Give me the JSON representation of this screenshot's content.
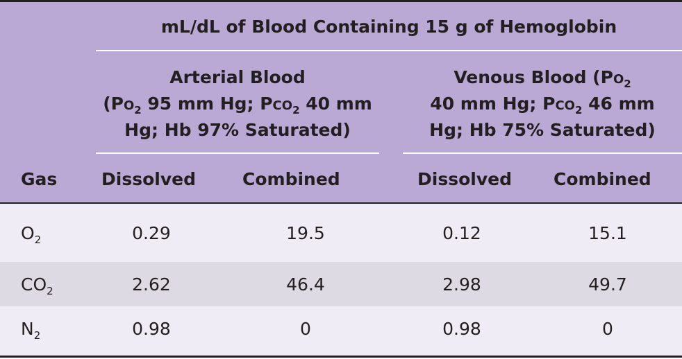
{
  "header": {
    "span_title": "mL/dL of Blood Containing 15 g of Hemoglobin",
    "gas_label": "Gas",
    "arterial": {
      "line1": "Arterial Blood",
      "line2_prefix": "(P",
      "line2_sub_o": "o",
      "line2_sub_2": "2",
      "line2_mid": " 95 mm Hg; P",
      "line2_sub_co": "co",
      "line2_sub_2b": "2",
      "line2_suffix": " 40 mm",
      "line3": "Hg; Hb 97% Saturated)"
    },
    "venous": {
      "line1_prefix": "Venous Blood (P",
      "line1_sub_o": "o",
      "line1_sub_2": "2",
      "line2_prefix": "40 mm Hg; P",
      "line2_sub_co": "co",
      "line2_sub_2": "2",
      "line2_suffix": " 46 mm",
      "line3": "Hg; Hb 75% Saturated)"
    },
    "columns": {
      "arterial_dissolved": "Dissolved",
      "arterial_combined": "Combined",
      "venous_dissolved": "Dissolved",
      "venous_combined": "Combined"
    }
  },
  "rows": [
    {
      "gas": "O",
      "gas_sub": "2",
      "arterial_dissolved": "0.29",
      "arterial_combined": "19.5",
      "venous_dissolved": "0.12",
      "venous_combined": "15.1"
    },
    {
      "gas": "CO",
      "gas_sub": "2",
      "arterial_dissolved": "2.62",
      "arterial_combined": "46.4",
      "venous_dissolved": "2.98",
      "venous_combined": "49.7"
    },
    {
      "gas": "N",
      "gas_sub": "2",
      "arterial_dissolved": "0.98",
      "arterial_combined": "0",
      "venous_dissolved": "0.98",
      "venous_combined": "0"
    }
  ],
  "colors": {
    "header_bg": "#b9a9d4",
    "row_light": "#efecf5",
    "row_mid": "#dedae4",
    "text": "#231f20"
  }
}
